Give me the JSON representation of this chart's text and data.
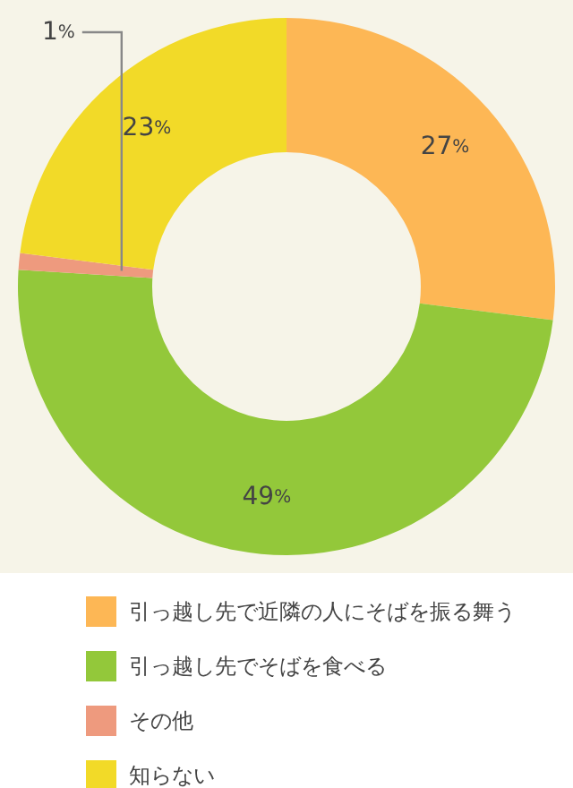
{
  "chart_data": {
    "type": "donut",
    "categories": [
      "引っ越し先で近隣の人にそばを振る舞う",
      "引っ越し先でそばを食べる",
      "その他",
      "知らない"
    ],
    "values": [
      27,
      49,
      1,
      23
    ],
    "colors": [
      "#fdb755",
      "#93c83a",
      "#ee9a7e",
      "#f2da28"
    ],
    "value_labels": [
      "27%",
      "49%",
      "1%",
      "23%"
    ],
    "legend": "bottom"
  }
}
